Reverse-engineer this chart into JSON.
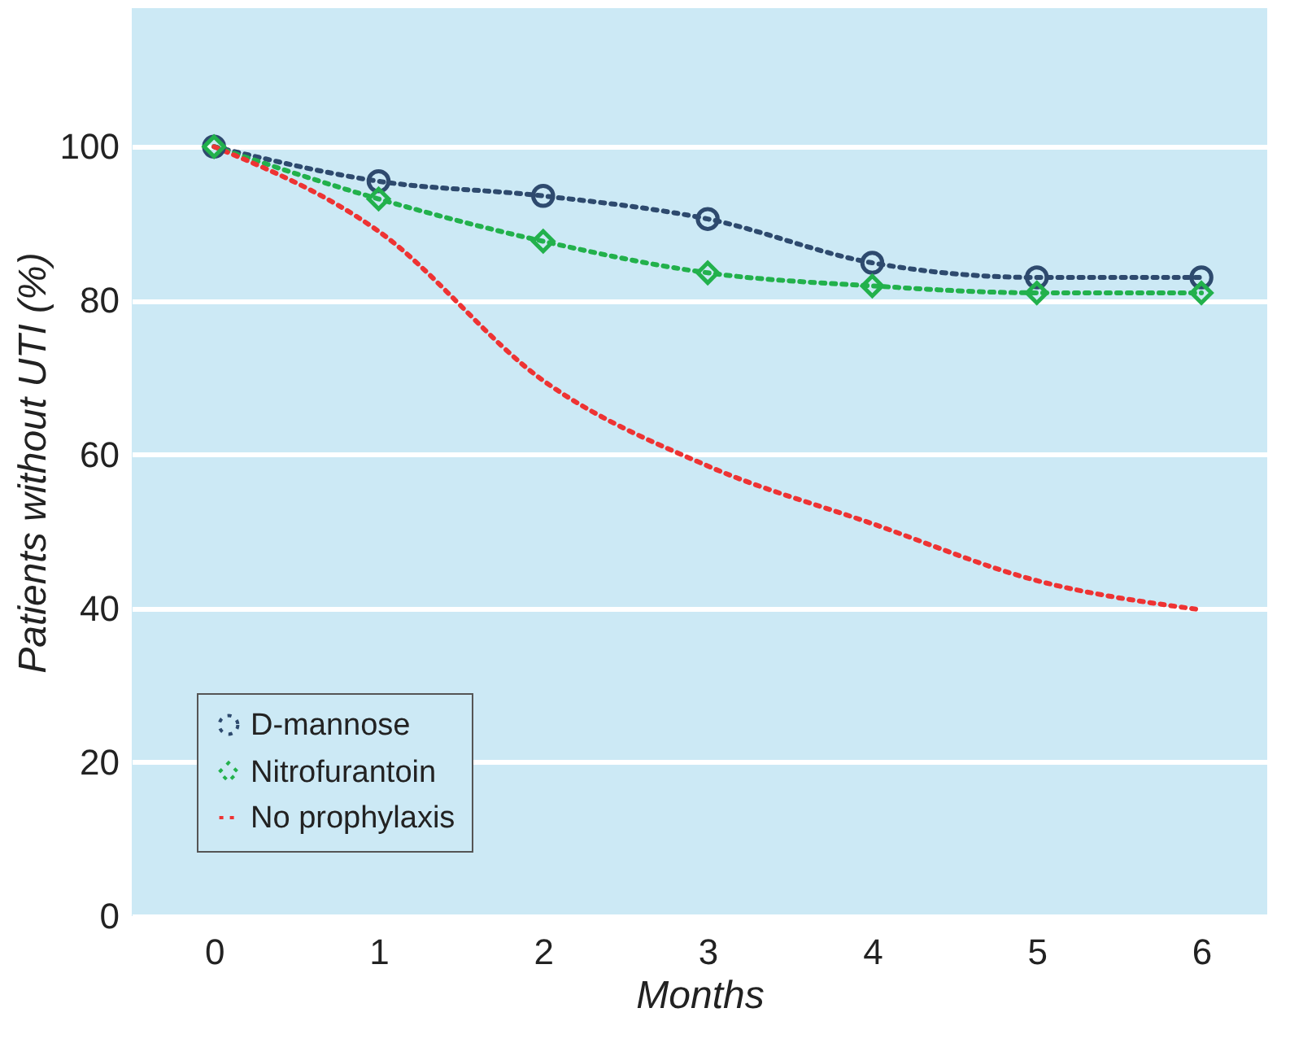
{
  "chart_data": {
    "type": "line",
    "xlabel": "Months",
    "ylabel": "Patients without UTI (%)",
    "x": [
      0,
      1,
      2,
      3,
      4,
      5,
      6
    ],
    "series": [
      {
        "name": "D-mannose",
        "color": "#2e4a6e",
        "marker": "circle",
        "values": [
          100,
          95.5,
          93.6,
          90.6,
          84.9,
          83,
          83
        ]
      },
      {
        "name": "Nitrofurantoin",
        "color": "#22b14c",
        "marker": "diamond",
        "values": [
          100,
          93.2,
          87.7,
          83.6,
          81.9,
          81,
          81
        ]
      },
      {
        "name": "No prophylaxis",
        "color": "#ee3333",
        "marker": "none",
        "values": [
          100,
          89,
          69.6,
          58.5,
          51,
          43.6,
          39.8
        ]
      }
    ],
    "xlim": [
      -0.5,
      6.4
    ],
    "xticks": [
      0,
      1,
      2,
      3,
      4,
      5,
      6
    ],
    "ylim": [
      0,
      118
    ],
    "yticks": [
      0,
      20,
      40,
      60,
      80,
      100
    ],
    "grid": "y",
    "legend": "bottom left",
    "line_style": "dotted"
  }
}
